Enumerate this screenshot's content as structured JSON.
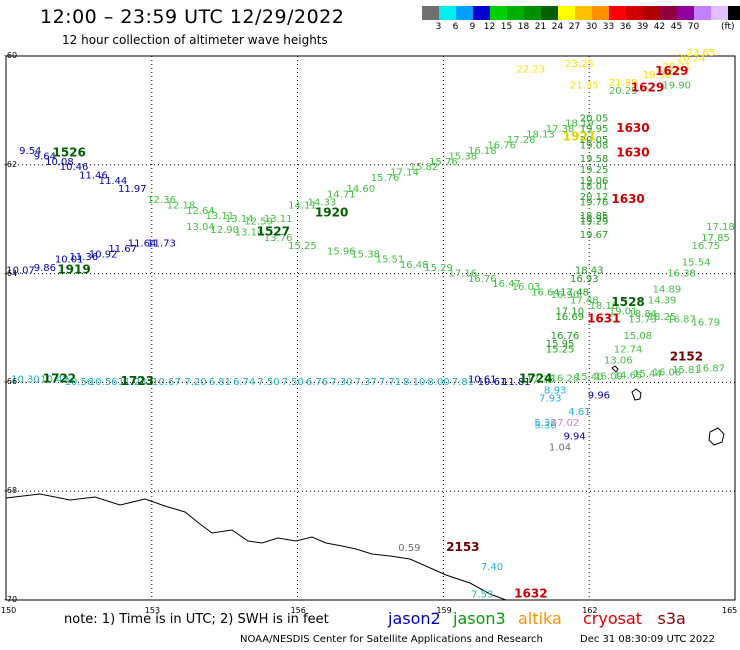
{
  "header": {
    "title": "12:00 – 23:59 UTC 12/29/2022",
    "subtitle": "12 hour collection of altimeter wave heights"
  },
  "color_scale": {
    "colors": [
      "#707070",
      "#00f0f0",
      "#00a0ff",
      "#0000d0",
      "#00d000",
      "#00b000",
      "#009000",
      "#006000",
      "#ffff00",
      "#ffc000",
      "#ff9000",
      "#ff0000",
      "#d00000",
      "#b00000",
      "#900040",
      "#9000a0",
      "#c080ff",
      "#e0c0ff",
      "#000000"
    ],
    "labels": [
      "3",
      "6",
      "9",
      "12",
      "15",
      "18",
      "21",
      "24",
      "27",
      "30",
      "33",
      "36",
      "39",
      "42",
      "45",
      "70"
    ],
    "unit": "(ft)"
  },
  "map": {
    "lat_labels": [
      "-60",
      "-62",
      "-64",
      "-66",
      "-68",
      "-70"
    ],
    "lon_labels": [
      "150",
      "153",
      "156",
      "159",
      "162",
      "165"
    ]
  },
  "tracks": [
    {
      "color": "#0000c0",
      "points": [
        [
          150.5,
          -61.8,
          "9.54"
        ],
        [
          150.8,
          -61.9,
          "9.64"
        ],
        [
          151.1,
          -62.0,
          "10.08"
        ],
        [
          151.4,
          -62.1,
          "10.46"
        ],
        [
          151.8,
          -62.25,
          "11.46"
        ],
        [
          152.2,
          -62.35,
          "11.44"
        ],
        [
          152.6,
          -62.5,
          "11.97"
        ]
      ]
    },
    {
      "color": "#0000c0",
      "points": [
        [
          150.3,
          -64.0,
          "10.07"
        ],
        [
          150.8,
          -63.95,
          "9.86"
        ],
        [
          151.3,
          -63.8,
          "10.01"
        ],
        [
          151.6,
          -63.75,
          "11.36"
        ],
        [
          152.0,
          -63.7,
          "10.92"
        ],
        [
          152.4,
          -63.6,
          "11.67"
        ],
        [
          152.8,
          -63.5,
          "11.64"
        ],
        [
          153.2,
          -63.5,
          "11.73"
        ]
      ]
    },
    {
      "color": "#40c040",
      "points": [
        [
          153.2,
          -62.7,
          "12.36"
        ],
        [
          153.6,
          -62.8,
          "12.18"
        ],
        [
          154.0,
          -62.9,
          "12.64"
        ],
        [
          154.4,
          -63.0,
          "13.11"
        ],
        [
          154.8,
          -63.05,
          "13.14"
        ],
        [
          155.2,
          -63.1,
          "12.59"
        ],
        [
          155.6,
          -63.05,
          "13.11"
        ],
        [
          156.1,
          -62.8,
          "14.11"
        ],
        [
          156.5,
          -62.75,
          "14.33"
        ],
        [
          156.9,
          -62.6,
          "14.71"
        ],
        [
          157.3,
          -62.5,
          "14.60"
        ],
        [
          157.8,
          -62.3,
          "15.76"
        ],
        [
          158.2,
          -62.2,
          "17.14"
        ],
        [
          158.6,
          -62.1,
          "15.82"
        ],
        [
          159.0,
          -62.0,
          "15.76"
        ],
        [
          159.4,
          -61.9,
          "15.38"
        ],
        [
          159.8,
          -61.8,
          "16.18"
        ],
        [
          160.2,
          -61.7,
          "16.76"
        ],
        [
          160.6,
          -61.6,
          "17.28"
        ],
        [
          161.0,
          -61.5,
          "18.13"
        ],
        [
          161.4,
          -61.4,
          "17.38"
        ],
        [
          161.8,
          -61.3,
          "18.19"
        ]
      ]
    },
    {
      "color": "#40c040",
      "points": [
        [
          154.0,
          -63.2,
          "13.04"
        ],
        [
          154.5,
          -63.25,
          "12.90"
        ],
        [
          155.0,
          -63.3,
          "13.14"
        ],
        [
          155.6,
          -63.4,
          "13.76"
        ],
        [
          156.1,
          -63.55,
          "15.25"
        ],
        [
          156.9,
          -63.65,
          "15.96"
        ],
        [
          157.4,
          -63.7,
          "15.38"
        ],
        [
          157.9,
          -63.8,
          "15.51"
        ],
        [
          158.4,
          -63.9,
          "16.48"
        ],
        [
          158.9,
          -63.95,
          "15.29"
        ],
        [
          159.4,
          -64.05,
          "17.16"
        ],
        [
          159.8,
          -64.15,
          "16.76"
        ],
        [
          160.3,
          -64.25,
          "16.47"
        ],
        [
          160.7,
          -64.3,
          "16.03"
        ],
        [
          161.1,
          -64.4,
          "16.64"
        ],
        [
          161.5,
          -64.45,
          "16.90"
        ],
        [
          161.9,
          -64.55,
          "17.48"
        ],
        [
          162.3,
          -64.65,
          "18.18"
        ],
        [
          162.7,
          -64.75,
          "19.01"
        ],
        [
          163.1,
          -64.8,
          "18.84"
        ],
        [
          163.5,
          -64.85,
          "18.25"
        ],
        [
          163.9,
          -64.9,
          "16.87"
        ],
        [
          164.4,
          -64.95,
          "16.79"
        ]
      ]
    },
    {
      "color": "#20b0c0",
      "points": [
        [
          150.4,
          -66.0,
          "10.30"
        ],
        [
          151.0,
          -66.0,
          "10.42"
        ],
        [
          151.5,
          -66.05,
          "10.56"
        ],
        [
          152.0,
          -66.05,
          "10.56"
        ],
        [
          152.6,
          -66.05,
          "11.23"
        ],
        [
          153.3,
          -66.05,
          "10.67"
        ],
        [
          153.9,
          -66.05,
          "7.20"
        ],
        [
          154.4,
          -66.05,
          "6.81"
        ],
        [
          154.9,
          -66.05,
          "6.74"
        ],
        [
          155.4,
          -66.05,
          "7.50"
        ],
        [
          155.9,
          -66.05,
          "7.50"
        ],
        [
          156.4,
          -66.05,
          "6.76"
        ],
        [
          156.9,
          -66.05,
          "7.30"
        ],
        [
          157.4,
          -66.05,
          "7.37"
        ],
        [
          157.9,
          -66.05,
          "7.71"
        ],
        [
          158.4,
          -66.05,
          "8.10"
        ],
        [
          158.9,
          -66.05,
          "8.00"
        ],
        [
          159.4,
          -66.05,
          "7.81"
        ]
      ]
    },
    {
      "color": "#0000c0",
      "points": [
        [
          160.0,
          -66.05,
          "10.61"
        ],
        [
          160.5,
          -66.05,
          "11.81"
        ]
      ]
    },
    {
      "color": "#40c040",
      "points": [
        [
          161.0,
          -66.0,
          "17.35"
        ],
        [
          161.5,
          -65.98,
          "16.28"
        ],
        [
          162.0,
          -65.96,
          "15.40"
        ],
        [
          162.4,
          -65.95,
          "16.09"
        ],
        [
          162.8,
          -65.93,
          "14.65"
        ],
        [
          163.2,
          -65.9,
          "15.44"
        ],
        [
          163.6,
          -65.87,
          "16.08"
        ],
        [
          164.0,
          -65.83,
          "15.81"
        ],
        [
          164.5,
          -65.8,
          "16.87"
        ]
      ]
    },
    {
      "color": "#20a020",
      "points": [
        [
          162.1,
          -61.2,
          "20.05"
        ],
        [
          162.1,
          -61.4,
          "19.95"
        ],
        [
          162.1,
          -61.6,
          "20.05"
        ],
        [
          162.1,
          -61.7,
          "19.08"
        ],
        [
          162.1,
          -61.95,
          "19.58"
        ],
        [
          162.1,
          -62.15,
          "19.25"
        ],
        [
          162.1,
          -62.35,
          "19.06"
        ],
        [
          162.1,
          -62.45,
          "18.01"
        ],
        [
          162.1,
          -62.65,
          "20.12"
        ],
        [
          162.1,
          -62.75,
          "19.76"
        ],
        [
          162.1,
          -63.0,
          "18.85"
        ],
        [
          162.1,
          -63.05,
          "18.95"
        ],
        [
          162.1,
          -63.1,
          "19.29"
        ],
        [
          162.1,
          -63.35,
          "19.67"
        ],
        [
          162.0,
          -64.0,
          "18.43"
        ],
        [
          161.9,
          -64.15,
          "16.93"
        ],
        [
          161.7,
          -64.4,
          "17.48"
        ],
        [
          161.6,
          -64.75,
          "17.10"
        ],
        [
          161.6,
          -64.85,
          "16.69"
        ],
        [
          161.5,
          -65.2,
          "16.76"
        ],
        [
          161.4,
          -65.35,
          "15.95"
        ],
        [
          161.4,
          -65.45,
          "15.25"
        ]
      ]
    },
    {
      "color": "#40c040",
      "points": [
        [
          164.7,
          -63.2,
          "17.18"
        ],
        [
          164.6,
          -63.4,
          "17.85"
        ],
        [
          164.4,
          -63.55,
          "16.75"
        ],
        [
          164.2,
          -63.85,
          "15.54"
        ],
        [
          163.9,
          -64.05,
          "16.38"
        ],
        [
          163.6,
          -64.35,
          "14.89"
        ],
        [
          163.5,
          -64.55,
          "14.39"
        ],
        [
          163.1,
          -64.9,
          "13.73"
        ],
        [
          163.0,
          -65.2,
          "15.08"
        ],
        [
          162.8,
          -65.45,
          "12.74"
        ],
        [
          162.6,
          -65.65,
          "13.06"
        ]
      ]
    },
    {
      "color": "#20b0e0",
      "points": [
        [
          161.3,
          -66.2,
          "8.93"
        ],
        [
          161.2,
          -66.35,
          "7.93"
        ],
        [
          161.8,
          -66.6,
          "4.61"
        ],
        [
          161.1,
          -66.8,
          "5.38"
        ],
        [
          161.1,
          -66.85,
          "5.36"
        ]
      ]
    },
    {
      "color": "#0000c0",
      "points": [
        [
          162.2,
          -66.3,
          "9.96"
        ],
        [
          161.7,
          -67.05,
          "9.94"
        ]
      ]
    },
    {
      "color": "#d080d0",
      "points": [
        [
          161.5,
          -66.8,
          "47.02"
        ]
      ]
    },
    {
      "color": "#707070",
      "points": [
        [
          161.4,
          -67.25,
          "1.04"
        ]
      ]
    },
    {
      "color": "#ffe000",
      "points": [
        [
          160.8,
          -60.3,
          "22.23"
        ],
        [
          161.9,
          -60.6,
          "21.35"
        ],
        [
          162.7,
          -60.55,
          "21.88"
        ],
        [
          161.8,
          -60.2,
          "23.25"
        ],
        [
          164.3,
          -60.0,
          "23.65"
        ],
        [
          164.1,
          -60.1,
          "20.24"
        ],
        [
          163.8,
          -60.25,
          "20.21"
        ],
        [
          163.4,
          -60.4,
          "19.90"
        ]
      ]
    },
    {
      "color": "#40c040",
      "points": [
        [
          163.8,
          -60.6,
          "19.90"
        ],
        [
          162.7,
          -60.7,
          "20.25"
        ]
      ]
    },
    {
      "color": "#0000c0",
      "points": [
        [
          159.8,
          -66.0,
          "10.61"
        ]
      ]
    }
  ],
  "markers": [
    {
      "lon": 151.3,
      "lat": -61.85,
      "text": "1526",
      "color": "#006000"
    },
    {
      "lon": 151.4,
      "lat": -64.0,
      "text": "1919",
      "color": "#006000"
    },
    {
      "lon": 156.7,
      "lat": -62.95,
      "text": "1920",
      "color": "#006000"
    },
    {
      "lon": 155.5,
      "lat": -63.3,
      "text": "1527",
      "color": "#006000"
    },
    {
      "lon": 151.1,
      "lat": -66.0,
      "text": "1722",
      "color": "#006000"
    },
    {
      "lon": 152.7,
      "lat": -66.05,
      "text": "1723",
      "color": "#006000"
    },
    {
      "lon": 160.9,
      "lat": -66.0,
      "text": "1724",
      "color": "#006000"
    },
    {
      "lon": 162.8,
      "lat": -64.6,
      "text": "1528",
      "color": "#006000"
    },
    {
      "lon": 163.7,
      "lat": -60.35,
      "text": "1629",
      "color": "#d00000"
    },
    {
      "lon": 163.2,
      "lat": -60.65,
      "text": "1629",
      "color": "#d00000"
    },
    {
      "lon": 162.9,
      "lat": -61.4,
      "text": "1630",
      "color": "#d00000"
    },
    {
      "lon": 162.9,
      "lat": -61.85,
      "text": "1630",
      "color": "#d00000"
    },
    {
      "lon": 162.8,
      "lat": -62.7,
      "text": "1630",
      "color": "#d00000"
    },
    {
      "lon": 162.3,
      "lat": -64.9,
      "text": "1631",
      "color": "#d00000"
    },
    {
      "lon": 164.0,
      "lat": -65.6,
      "text": "2152",
      "color": "#700000"
    },
    {
      "lon": 159.4,
      "lat": -69.1,
      "text": "2153",
      "color": "#700000"
    },
    {
      "lon": 160.8,
      "lat": -69.95,
      "text": "1632",
      "color": "#d00000"
    },
    {
      "lon": 161.8,
      "lat": -61.55,
      "text": "1921",
      "color": "#e0d000"
    }
  ],
  "extra_values": [
    {
      "lon": 158.3,
      "lat": -69.1,
      "text": "0.59",
      "color": "#707070"
    },
    {
      "lon": 160.0,
      "lat": -69.45,
      "text": "7.40",
      "color": "#20b0e0"
    },
    {
      "lon": 159.8,
      "lat": -69.95,
      "text": "7.53",
      "color": "#20b0e0"
    }
  ],
  "footer": {
    "note": "note: 1) Time is in UTC; 2) SWH is in feet",
    "satellites": [
      {
        "name": "jason2",
        "color": "#0000c0"
      },
      {
        "name": "jason3",
        "color": "#00a000"
      },
      {
        "name": "altika",
        "color": "#ff9000"
      },
      {
        "name": "cryosat",
        "color": "#e00000"
      },
      {
        "name": "s3a",
        "color": "#900000"
      }
    ],
    "credit": "NOAA/NESDIS Center for Satellite Applications and Research",
    "timestamp": "Dec 31 08:30:09 UTC 2022"
  }
}
